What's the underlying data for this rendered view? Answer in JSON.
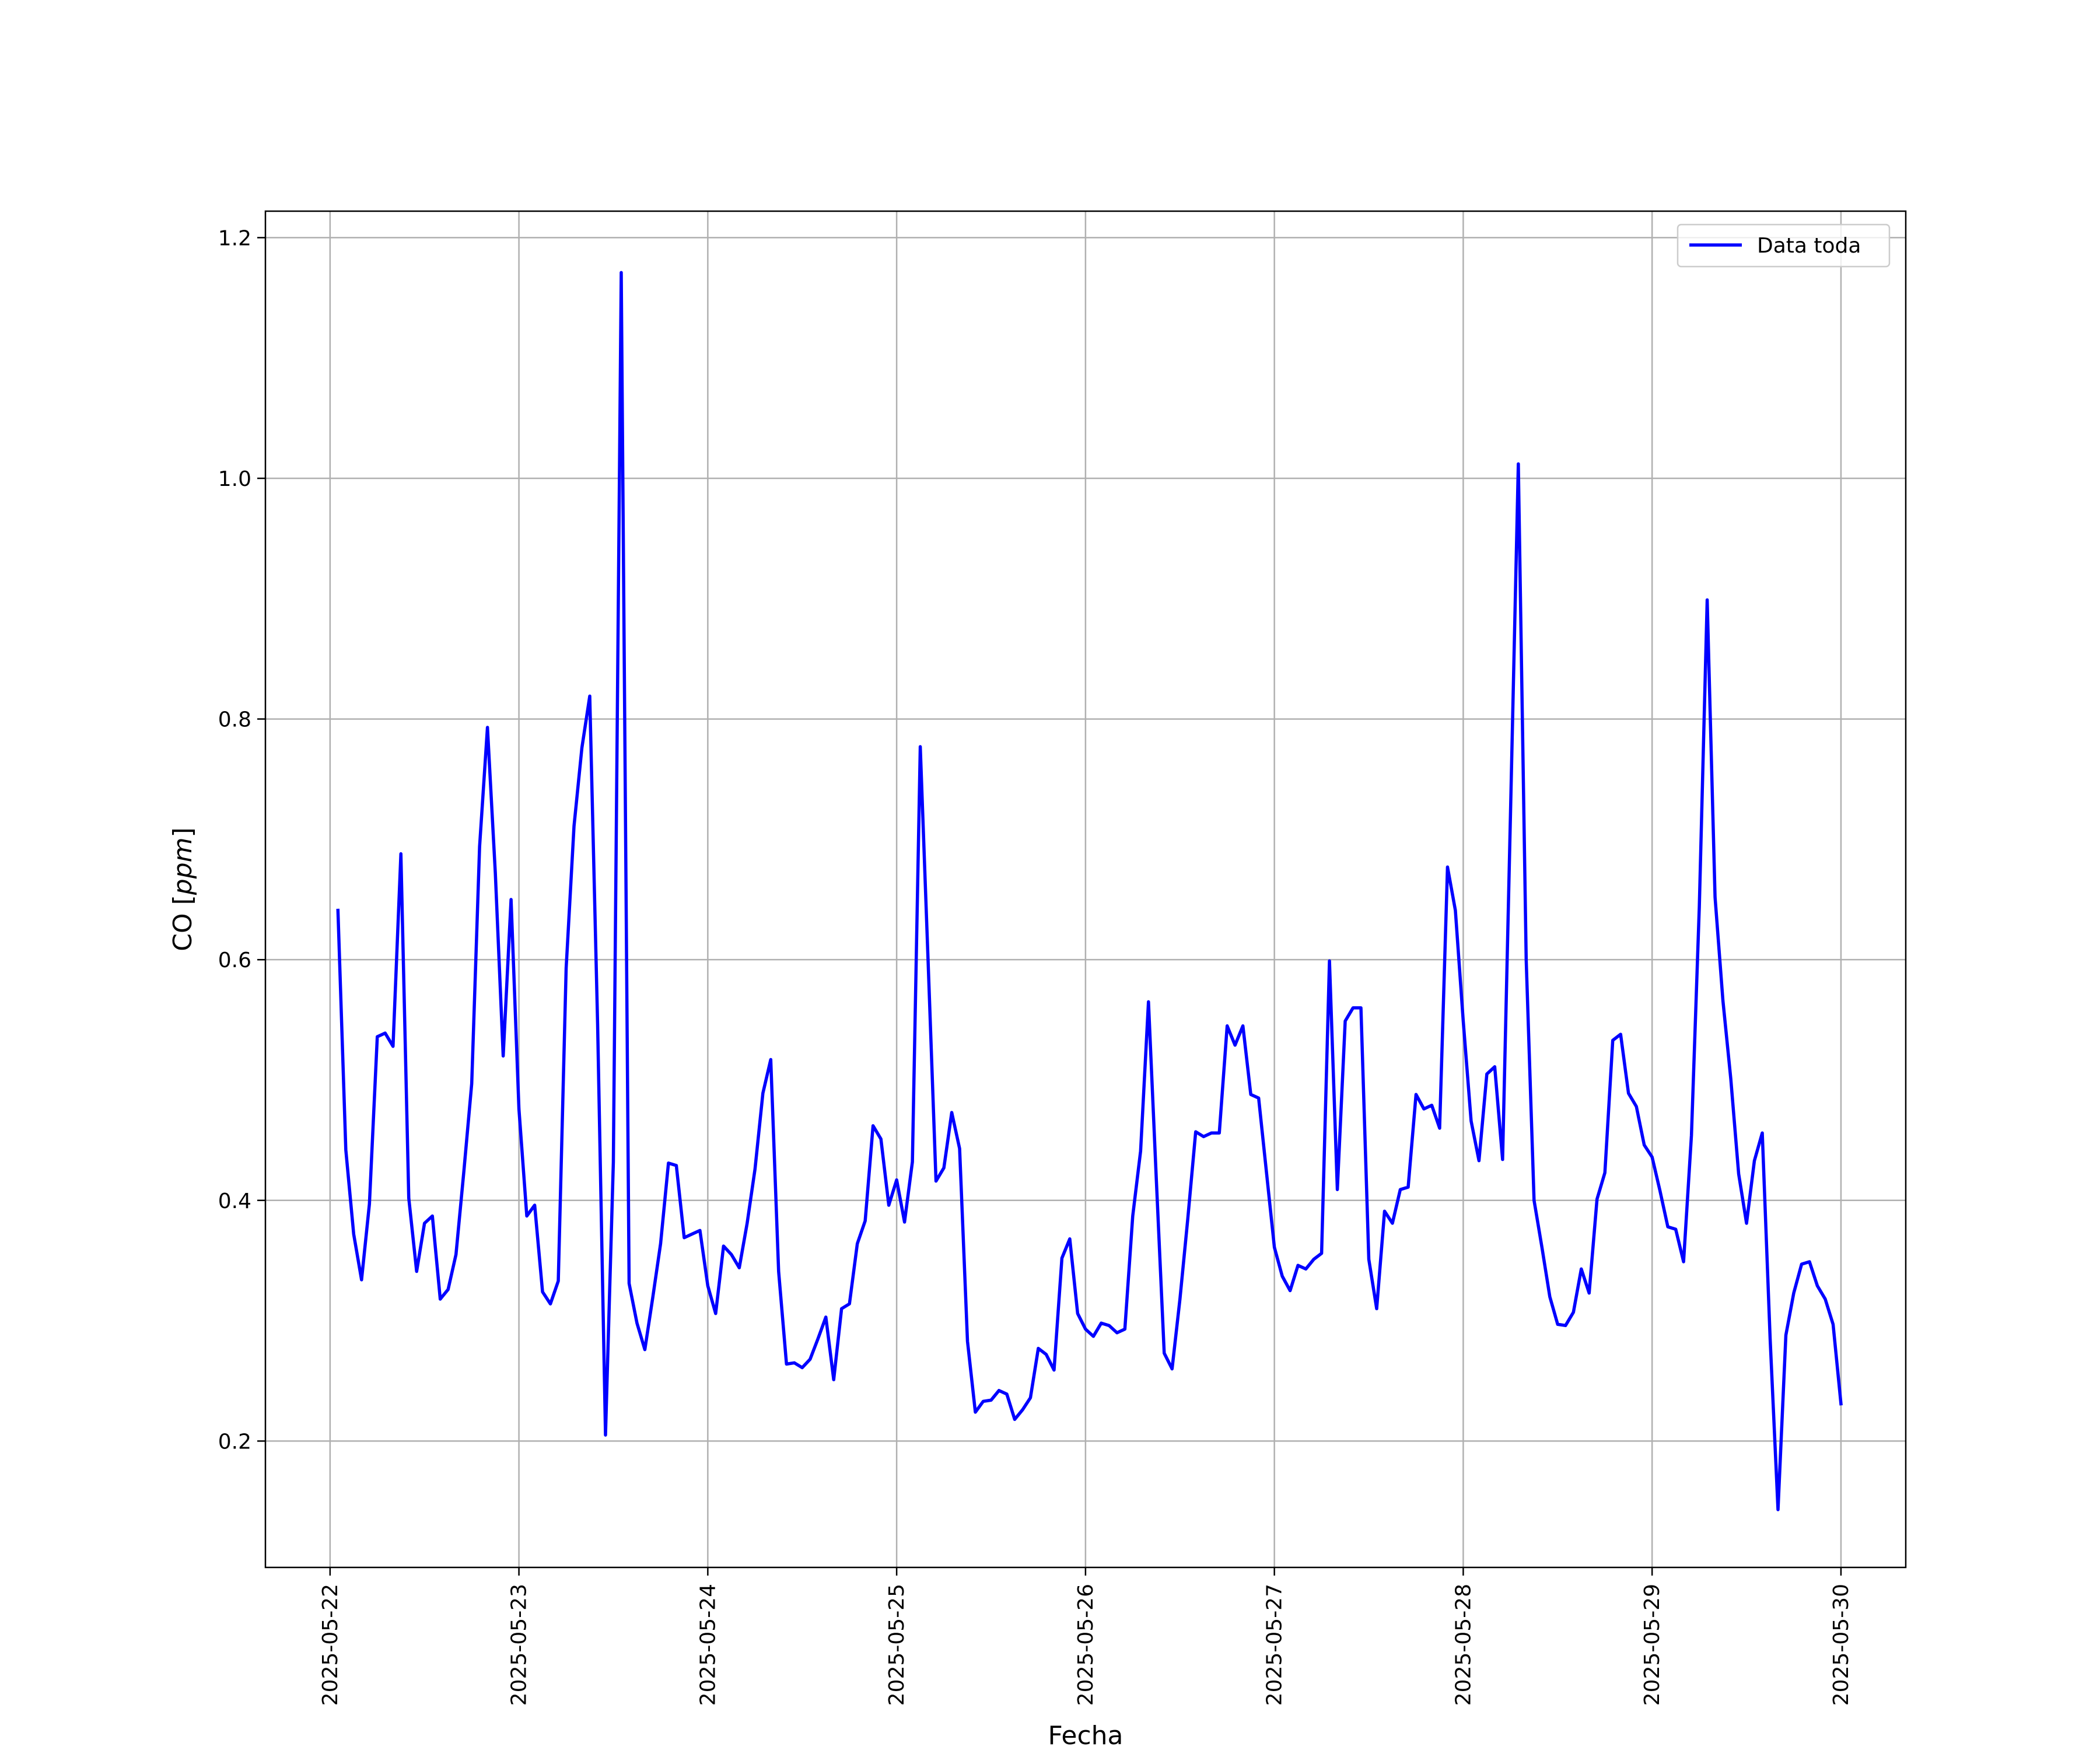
{
  "chart_data": {
    "type": "line",
    "title": "",
    "xlabel": "Fecha",
    "ylabel": "CO [ppm]",
    "ylabel_parts": {
      "prefix": "CO ",
      "unit_open": "[",
      "unit": "ppm",
      "unit_close": "]"
    },
    "xlim": [
      "2025-05-21T15:47",
      "2025-05-30T08:14"
    ],
    "ylim": [
      0.095,
      1.222
    ],
    "x_ticks": [
      "2025-05-22",
      "2025-05-23",
      "2025-05-24",
      "2025-05-25",
      "2025-05-26",
      "2025-05-27",
      "2025-05-28",
      "2025-05-29",
      "2025-05-30"
    ],
    "y_ticks": [
      0.2,
      0.4,
      0.6,
      0.8,
      1.0,
      1.2
    ],
    "y_tick_labels": [
      "0.2",
      "0.4",
      "0.6",
      "0.8",
      "1.0",
      "1.2"
    ],
    "grid": true,
    "legend": {
      "position": "top-right",
      "entries": [
        "Data toda"
      ]
    },
    "series": [
      {
        "name": "Data toda",
        "color": "#0000ff",
        "x": [
          "2025-05-22T01:00",
          "2025-05-22T02:00",
          "2025-05-22T03:00",
          "2025-05-22T04:00",
          "2025-05-22T05:00",
          "2025-05-22T06:00",
          "2025-05-22T07:00",
          "2025-05-22T08:00",
          "2025-05-22T09:00",
          "2025-05-22T10:00",
          "2025-05-22T11:00",
          "2025-05-22T12:00",
          "2025-05-22T13:00",
          "2025-05-22T14:00",
          "2025-05-22T15:00",
          "2025-05-22T16:00",
          "2025-05-22T17:00",
          "2025-05-22T18:00",
          "2025-05-22T19:00",
          "2025-05-22T20:00",
          "2025-05-22T21:00",
          "2025-05-22T22:00",
          "2025-05-22T23:00",
          "2025-05-23T00:00",
          "2025-05-23T01:00",
          "2025-05-23T02:00",
          "2025-05-23T03:00",
          "2025-05-23T04:00",
          "2025-05-23T05:00",
          "2025-05-23T06:00",
          "2025-05-23T07:00",
          "2025-05-23T08:00",
          "2025-05-23T09:00",
          "2025-05-23T10:00",
          "2025-05-23T11:00",
          "2025-05-23T12:00",
          "2025-05-23T13:00",
          "2025-05-23T14:00",
          "2025-05-23T15:00",
          "2025-05-23T16:00",
          "2025-05-23T17:00",
          "2025-05-23T18:00",
          "2025-05-23T19:00",
          "2025-05-23T20:00",
          "2025-05-23T21:00",
          "2025-05-23T22:00",
          "2025-05-23T23:00",
          "2025-05-24T00:00",
          "2025-05-24T01:00",
          "2025-05-24T02:00",
          "2025-05-24T03:00",
          "2025-05-24T04:00",
          "2025-05-24T05:00",
          "2025-05-24T06:00",
          "2025-05-24T07:00",
          "2025-05-24T08:00",
          "2025-05-24T09:00",
          "2025-05-24T10:00",
          "2025-05-24T11:00",
          "2025-05-24T12:00",
          "2025-05-24T13:00",
          "2025-05-24T14:00",
          "2025-05-24T15:00",
          "2025-05-24T16:00",
          "2025-05-24T17:00",
          "2025-05-24T18:00",
          "2025-05-24T19:00",
          "2025-05-24T20:00",
          "2025-05-24T21:00",
          "2025-05-24T22:00",
          "2025-05-24T23:00",
          "2025-05-25T00:00",
          "2025-05-25T01:00",
          "2025-05-25T02:00",
          "2025-05-25T03:00",
          "2025-05-25T04:00",
          "2025-05-25T05:00",
          "2025-05-25T06:00",
          "2025-05-25T07:00",
          "2025-05-25T08:00",
          "2025-05-25T09:00",
          "2025-05-25T10:00",
          "2025-05-25T11:00",
          "2025-05-25T12:00",
          "2025-05-25T13:00",
          "2025-05-25T14:00",
          "2025-05-25T15:00",
          "2025-05-25T16:00",
          "2025-05-25T17:00",
          "2025-05-25T18:00",
          "2025-05-25T19:00",
          "2025-05-25T20:00",
          "2025-05-25T21:00",
          "2025-05-25T22:00",
          "2025-05-25T23:00",
          "2025-05-26T00:00",
          "2025-05-26T01:00",
          "2025-05-26T02:00",
          "2025-05-26T03:00",
          "2025-05-26T04:00",
          "2025-05-26T05:00",
          "2025-05-26T06:00",
          "2025-05-26T07:00",
          "2025-05-26T08:00",
          "2025-05-26T09:00",
          "2025-05-26T10:00",
          "2025-05-26T11:00",
          "2025-05-26T12:00",
          "2025-05-26T13:00",
          "2025-05-26T14:00",
          "2025-05-26T15:00",
          "2025-05-26T16:00",
          "2025-05-26T17:00",
          "2025-05-26T18:00",
          "2025-05-26T19:00",
          "2025-05-26T20:00",
          "2025-05-26T21:00",
          "2025-05-26T22:00",
          "2025-05-26T23:00",
          "2025-05-27T00:00",
          "2025-05-27T01:00",
          "2025-05-27T02:00",
          "2025-05-27T03:00",
          "2025-05-27T04:00",
          "2025-05-27T05:00",
          "2025-05-27T06:00",
          "2025-05-27T07:00",
          "2025-05-27T08:00",
          "2025-05-27T09:00",
          "2025-05-27T10:00",
          "2025-05-27T11:00",
          "2025-05-27T12:00",
          "2025-05-27T13:00",
          "2025-05-27T14:00",
          "2025-05-27T15:00",
          "2025-05-27T16:00",
          "2025-05-27T17:00",
          "2025-05-27T18:00",
          "2025-05-27T19:00",
          "2025-05-27T20:00",
          "2025-05-27T21:00",
          "2025-05-27T22:00",
          "2025-05-27T23:00",
          "2025-05-28T00:00",
          "2025-05-28T01:00",
          "2025-05-28T02:00",
          "2025-05-28T03:00",
          "2025-05-28T04:00",
          "2025-05-28T05:00",
          "2025-05-28T06:00",
          "2025-05-28T07:00",
          "2025-05-28T08:00",
          "2025-05-28T09:00",
          "2025-05-28T10:00",
          "2025-05-28T11:00",
          "2025-05-28T12:00",
          "2025-05-28T13:00",
          "2025-05-28T14:00",
          "2025-05-28T15:00",
          "2025-05-28T16:00",
          "2025-05-28T17:00",
          "2025-05-28T18:00",
          "2025-05-28T19:00",
          "2025-05-28T20:00",
          "2025-05-28T21:00",
          "2025-05-28T22:00",
          "2025-05-28T23:00",
          "2025-05-29T00:00",
          "2025-05-29T01:00",
          "2025-05-29T02:00",
          "2025-05-29T03:00",
          "2025-05-29T04:00",
          "2025-05-29T05:00",
          "2025-05-29T06:00",
          "2025-05-29T07:00",
          "2025-05-29T08:00",
          "2025-05-29T09:00",
          "2025-05-29T10:00",
          "2025-05-29T11:00",
          "2025-05-29T12:00",
          "2025-05-29T13:00",
          "2025-05-29T14:00",
          "2025-05-29T15:00",
          "2025-05-29T16:00",
          "2025-05-29T17:00",
          "2025-05-29T18:00",
          "2025-05-29T19:00",
          "2025-05-29T20:00",
          "2025-05-29T21:00",
          "2025-05-29T22:00",
          "2025-05-29T23:00",
          "2025-05-30T00:00"
        ],
        "values": [
          0.641,
          0.442,
          0.372,
          0.334,
          0.397,
          0.536,
          0.539,
          0.528,
          0.688,
          0.402,
          0.341,
          0.381,
          0.387,
          0.318,
          0.326,
          0.355,
          0.424,
          0.497,
          0.694,
          0.793,
          0.672,
          0.52,
          0.65,
          0.476,
          0.387,
          0.396,
          0.324,
          0.314,
          0.333,
          0.593,
          0.711,
          0.776,
          0.819,
          0.546,
          0.205,
          0.432,
          1.171,
          0.331,
          0.298,
          0.276,
          0.319,
          0.364,
          0.431,
          0.429,
          0.369,
          0.372,
          0.375,
          0.329,
          0.306,
          0.362,
          0.355,
          0.344,
          0.381,
          0.426,
          0.489,
          0.517,
          0.341,
          0.264,
          0.265,
          0.261,
          0.268,
          0.285,
          0.303,
          0.251,
          0.31,
          0.314,
          0.364,
          0.383,
          0.462,
          0.451,
          0.396,
          0.417,
          0.382,
          0.432,
          0.777,
          0.598,
          0.416,
          0.427,
          0.473,
          0.443,
          0.283,
          0.224,
          0.233,
          0.234,
          0.242,
          0.239,
          0.218,
          0.226,
          0.236,
          0.277,
          0.272,
          0.259,
          0.352,
          0.368,
          0.306,
          0.293,
          0.287,
          0.298,
          0.296,
          0.29,
          0.293,
          0.387,
          0.441,
          0.565,
          0.417,
          0.273,
          0.26,
          0.318,
          0.385,
          0.457,
          0.453,
          0.456,
          0.456,
          0.545,
          0.529,
          0.545,
          0.488,
          0.485,
          0.423,
          0.361,
          0.337,
          0.325,
          0.346,
          0.343,
          0.351,
          0.356,
          0.599,
          0.409,
          0.549,
          0.56,
          0.56,
          0.351,
          0.31,
          0.391,
          0.381,
          0.409,
          0.411,
          0.488,
          0.476,
          0.479,
          0.46,
          0.677,
          0.641,
          0.549,
          0.466,
          0.433,
          0.505,
          0.511,
          0.434,
          0.72,
          1.012,
          0.6,
          0.4,
          0.361,
          0.32,
          0.297,
          0.296,
          0.307,
          0.343,
          0.323,
          0.401,
          0.423,
          0.533,
          0.538,
          0.489,
          0.478,
          0.446,
          0.436,
          0.408,
          0.378,
          0.376,
          0.349,
          0.454,
          0.644,
          0.899,
          0.652,
          0.566,
          0.501,
          0.422,
          0.381,
          0.433,
          0.456,
          0.285,
          0.143,
          0.288,
          0.323,
          0.347,
          0.349,
          0.329,
          0.318,
          0.297,
          0.231
        ]
      }
    ]
  }
}
